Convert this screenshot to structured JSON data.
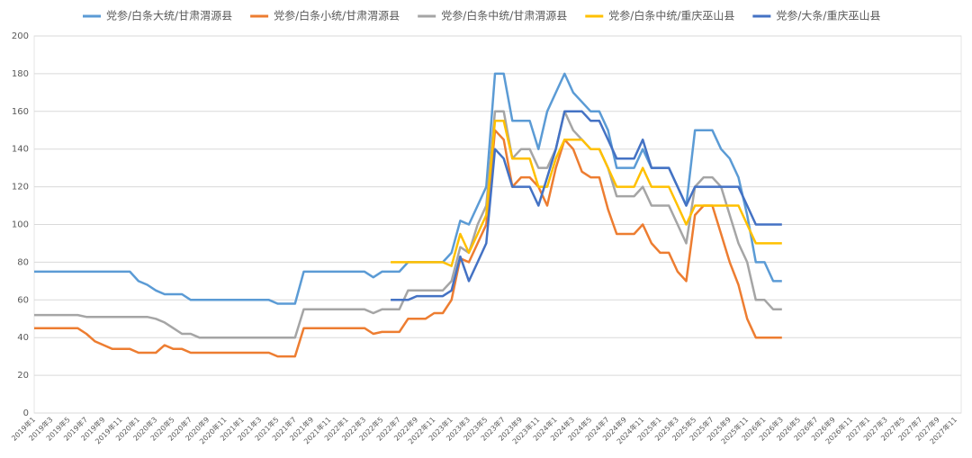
{
  "chart_data": {
    "type": "line",
    "categories": [
      "2019年1",
      null,
      "2019年3",
      null,
      "2019年5",
      null,
      "2019年7",
      null,
      "2019年9",
      null,
      "2019年11",
      null,
      "2020年1",
      null,
      "2020年3",
      null,
      "2020年5",
      null,
      "2020年7",
      null,
      "2020年9",
      null,
      "2020年11",
      null,
      "2021年1",
      null,
      "2021年3",
      null,
      "2021年5",
      null,
      "2021年7",
      null,
      "2021年9",
      null,
      "2021年11",
      null,
      "2022年1",
      null,
      "2022年3",
      null,
      "2022年5",
      null,
      "2022年7",
      null,
      "2022年9",
      null,
      "2022年11",
      null,
      "2023年1",
      null,
      "2023年3",
      null,
      "2023年5",
      null,
      "2023年7",
      null,
      "2023年9",
      null,
      "2023年11",
      null,
      "2024年1",
      null,
      "2024年3",
      null,
      "2024年5",
      null,
      "2024年7",
      null,
      "2024年9",
      null,
      "2024年11",
      null,
      "2025年1",
      null,
      "2025年3",
      null,
      "2025年5",
      null,
      "2025年7",
      null,
      "2025年9",
      null,
      "2025年11",
      null,
      "2026年1",
      null,
      "2026年3",
      null,
      "2026年5",
      null,
      "2026年7",
      null,
      "2026年9",
      null,
      "2026年11",
      null,
      "2027年1",
      null,
      "2027年3",
      null,
      "2027年5",
      null,
      "2027年7",
      null,
      "2027年9",
      null,
      "2027年11"
    ],
    "series": [
      {
        "name": "党参/白条大统/甘肃渭源县",
        "color": "#5b9bd5",
        "values": [
          75,
          75,
          75,
          75,
          75,
          75,
          75,
          75,
          75,
          75,
          75,
          75,
          70,
          68,
          65,
          63,
          63,
          63,
          60,
          60,
          60,
          60,
          60,
          60,
          60,
          60,
          60,
          60,
          58,
          58,
          58,
          75,
          75,
          75,
          75,
          75,
          75,
          75,
          75,
          72,
          75,
          75,
          75,
          80,
          80,
          80,
          80,
          80,
          85,
          102,
          100,
          110,
          120,
          180,
          180,
          155,
          155,
          155,
          140,
          160,
          170,
          180,
          170,
          165,
          160,
          160,
          150,
          130,
          130,
          130,
          140,
          130,
          130,
          130,
          120,
          110,
          150,
          150,
          150,
          140,
          135,
          125,
          105,
          80,
          80,
          70,
          70,
          null,
          null,
          null,
          null,
          null,
          null,
          null,
          null,
          null,
          null,
          null,
          null,
          null,
          null,
          null,
          null,
          null,
          null,
          null,
          null
        ]
      },
      {
        "name": "党参/白条小统/甘肃渭源县",
        "color": "#ed7d31",
        "values": [
          45,
          45,
          45,
          45,
          45,
          45,
          42,
          38,
          36,
          34,
          34,
          34,
          32,
          32,
          32,
          36,
          34,
          34,
          32,
          32,
          32,
          32,
          32,
          32,
          32,
          32,
          32,
          32,
          30,
          30,
          30,
          45,
          45,
          45,
          45,
          45,
          45,
          45,
          45,
          42,
          43,
          43,
          43,
          50,
          50,
          50,
          53,
          53,
          60,
          82,
          80,
          90,
          100,
          150,
          145,
          120,
          125,
          125,
          120,
          110,
          130,
          145,
          140,
          128,
          125,
          125,
          108,
          95,
          95,
          95,
          100,
          90,
          85,
          85,
          75,
          70,
          105,
          110,
          110,
          95,
          80,
          68,
          50,
          40,
          40,
          40,
          40,
          null,
          null,
          null,
          null,
          null,
          null,
          null,
          null,
          null,
          null,
          null,
          null,
          null,
          null,
          null,
          null,
          null,
          null,
          null,
          null
        ]
      },
      {
        "name": "党参/白条中统/甘肃渭源县",
        "color": "#a5a5a5",
        "values": [
          52,
          52,
          52,
          52,
          52,
          52,
          51,
          51,
          51,
          51,
          51,
          51,
          51,
          51,
          50,
          48,
          45,
          42,
          42,
          40,
          40,
          40,
          40,
          40,
          40,
          40,
          40,
          40,
          40,
          40,
          40,
          55,
          55,
          55,
          55,
          55,
          55,
          55,
          55,
          53,
          55,
          55,
          55,
          65,
          65,
          65,
          65,
          65,
          70,
          88,
          85,
          100,
          110,
          160,
          160,
          135,
          140,
          140,
          130,
          130,
          140,
          160,
          150,
          145,
          140,
          140,
          130,
          115,
          115,
          115,
          120,
          110,
          110,
          110,
          100,
          90,
          120,
          125,
          125,
          120,
          105,
          90,
          80,
          60,
          60,
          55,
          55,
          null,
          null,
          null,
          null,
          null,
          null,
          null,
          null,
          null,
          null,
          null,
          null,
          null,
          null,
          null,
          null,
          null,
          null,
          null,
          null
        ]
      },
      {
        "name": "党参/白条中统/重庆巫山县",
        "color": "#ffc000",
        "values": [
          null,
          null,
          null,
          null,
          null,
          null,
          null,
          null,
          null,
          null,
          null,
          null,
          null,
          null,
          null,
          null,
          null,
          null,
          null,
          null,
          null,
          null,
          null,
          null,
          null,
          null,
          null,
          null,
          null,
          null,
          null,
          null,
          null,
          null,
          null,
          null,
          null,
          null,
          null,
          null,
          null,
          80,
          80,
          80,
          80,
          80,
          80,
          80,
          78,
          95,
          85,
          95,
          105,
          155,
          155,
          135,
          135,
          135,
          120,
          120,
          135,
          145,
          145,
          145,
          140,
          140,
          130,
          120,
          120,
          120,
          130,
          120,
          120,
          120,
          110,
          100,
          110,
          110,
          110,
          110,
          110,
          110,
          100,
          90,
          90,
          90,
          90,
          null,
          null,
          null,
          null,
          null,
          null,
          null,
          null,
          null,
          null,
          null,
          null,
          null,
          null,
          null,
          null,
          null,
          null,
          null,
          null
        ]
      },
      {
        "name": "党参/大条/重庆巫山县",
        "color": "#4472c4",
        "values": [
          null,
          null,
          null,
          null,
          null,
          null,
          null,
          null,
          null,
          null,
          null,
          null,
          null,
          null,
          null,
          null,
          null,
          null,
          null,
          null,
          null,
          null,
          null,
          null,
          null,
          null,
          null,
          null,
          null,
          null,
          null,
          null,
          null,
          null,
          null,
          null,
          null,
          null,
          null,
          null,
          null,
          60,
          60,
          60,
          62,
          62,
          62,
          62,
          65,
          83,
          70,
          80,
          90,
          140,
          135,
          120,
          120,
          120,
          110,
          125,
          140,
          160,
          160,
          160,
          155,
          155,
          145,
          135,
          135,
          135,
          145,
          130,
          130,
          130,
          120,
          110,
          120,
          120,
          120,
          120,
          120,
          120,
          110,
          100,
          100,
          100,
          100,
          null,
          null,
          null,
          null,
          null,
          null,
          null,
          null,
          null,
          null,
          null,
          null,
          null,
          null,
          null,
          null,
          null,
          null,
          null,
          null
        ]
      }
    ],
    "ylim": [
      0,
      200
    ],
    "yticks": [
      0,
      20,
      40,
      60,
      80,
      100,
      120,
      140,
      160,
      180,
      200
    ],
    "grid": true,
    "legend": "top"
  }
}
